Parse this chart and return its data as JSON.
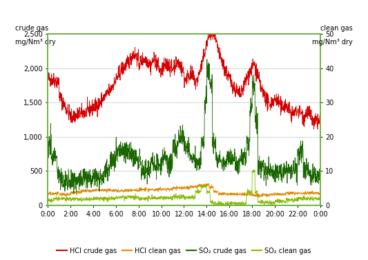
{
  "title_left_line1": "crude gas",
  "title_left_line2": "mg/Nm³ dry",
  "title_right_line1": "clean gas",
  "title_right_line2": "mg/Nm³ dry",
  "ylim_left": [
    0,
    2500
  ],
  "ylim_right": [
    0,
    50
  ],
  "yticks_left": [
    0,
    500,
    1000,
    1500,
    2000,
    2500
  ],
  "yticks_right": [
    0,
    10,
    20,
    30,
    40,
    50
  ],
  "xtick_labels": [
    "0:00",
    "2:00",
    "4:00",
    "6:00",
    "8:00",
    "10:00",
    "12:00",
    "14:00",
    "16:00",
    "18:00",
    "20:00",
    "22:00",
    "0:00"
  ],
  "colors": {
    "HCl_crude": "#d40000",
    "HCl_clean": "#e08800",
    "SO2_crude": "#1a6600",
    "SO2_clean": "#88bb00"
  },
  "legend_labels": [
    "HCl crude gas",
    "HCl clean gas",
    "SO₂ crude gas",
    "SO₂ clean gas"
  ],
  "border_color": "#6db33f",
  "grid_color": "#cccccc",
  "background_color": "#ffffff",
  "n_points": 1440,
  "line_width": 0.6
}
